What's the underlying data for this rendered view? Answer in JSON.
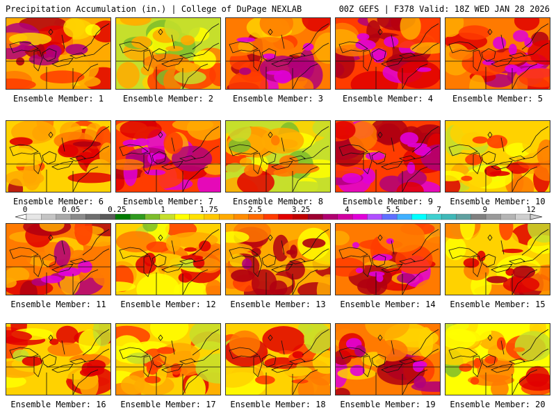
{
  "header": {
    "left": "Precipitation Accumulation (in.) | College of DuPage NEXLAB",
    "right": "00Z GEFS | F378 Valid: 18Z WED JAN 28 2026"
  },
  "legend": {
    "labels": [
      "0",
      "0.05",
      "0.25",
      "1",
      "1.75",
      "2.5",
      "3.25",
      "4",
      "5.5",
      "7",
      "9",
      "12"
    ],
    "colors": [
      "#e6e6e6",
      "#c4c4c4",
      "#a8a8a8",
      "#8a8a8a",
      "#6e6e6e",
      "#5a5a5a",
      "#007a00",
      "#2f9a1f",
      "#7cbd2b",
      "#c6df2c",
      "#ffff00",
      "#ffe100",
      "#ffc800",
      "#ffaa00",
      "#ff8c00",
      "#ff6a00",
      "#ff3c00",
      "#e00000",
      "#c00000",
      "#9c0030",
      "#b00070",
      "#d000a0",
      "#e000d8",
      "#b050ff",
      "#6070ff",
      "#40b0ff",
      "#00ffff",
      "#40d0d0",
      "#40b8b8",
      "#60a0a0",
      "#808080",
      "#9a9a9a",
      "#b4b4b4",
      "#cfcfcf"
    ]
  },
  "members": [
    {
      "label": "Ensemble Member: 1",
      "intensity": 0.7
    },
    {
      "label": "Ensemble Member: 2",
      "intensity": 0.32
    },
    {
      "label": "Ensemble Member: 3",
      "intensity": 0.78
    },
    {
      "label": "Ensemble Member: 4",
      "intensity": 0.88
    },
    {
      "label": "Ensemble Member: 5",
      "intensity": 0.82
    },
    {
      "label": "Ensemble Member: 6",
      "intensity": 0.58
    },
    {
      "label": "Ensemble Member: 7",
      "intensity": 0.85
    },
    {
      "label": "Ensemble Member: 8",
      "intensity": 0.35
    },
    {
      "label": "Ensemble Member: 9",
      "intensity": 0.9
    },
    {
      "label": "Ensemble Member: 10",
      "intensity": 0.48
    },
    {
      "label": "Ensemble Member: 11",
      "intensity": 0.76
    },
    {
      "label": "Ensemble Member: 12",
      "intensity": 0.52
    },
    {
      "label": "Ensemble Member: 13",
      "intensity": 0.66
    },
    {
      "label": "Ensemble Member: 14",
      "intensity": 0.8
    },
    {
      "label": "Ensemble Member: 15",
      "intensity": 0.55
    },
    {
      "label": "Ensemble Member: 16",
      "intensity": 0.54
    },
    {
      "label": "Ensemble Member: 17",
      "intensity": 0.48
    },
    {
      "label": "Ensemble Member: 18",
      "intensity": 0.5
    },
    {
      "label": "Ensemble Member: 19",
      "intensity": 0.74
    },
    {
      "label": "Ensemble Member: 20",
      "intensity": 0.44
    }
  ]
}
